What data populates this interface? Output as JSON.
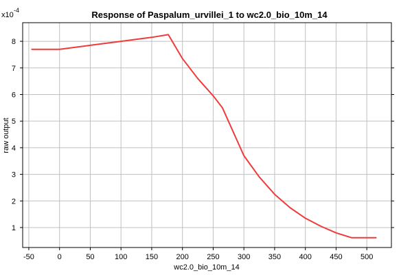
{
  "chart_data": {
    "type": "line",
    "title": "Response of Paspalum_urvillei_1 to wc2.0_bio_10m_14",
    "xlabel": "wc2.0_bio_10m_14",
    "ylabel": "raw output",
    "y_multiplier_label": "x10",
    "y_multiplier_exponent": "-4",
    "xlim": [
      -60,
      540
    ],
    "ylim": [
      0.25,
      8.7
    ],
    "x_ticks": [
      -50,
      0,
      50,
      100,
      150,
      200,
      250,
      300,
      350,
      400,
      450,
      500
    ],
    "y_ticks": [
      1,
      2,
      3,
      4,
      5,
      6,
      7,
      8
    ],
    "grid": true,
    "series": [
      {
        "color": "#f03a3a",
        "x": [
          -45,
          0,
          50,
          100,
          150,
          177,
          200,
          225,
          250,
          265,
          300,
          325,
          350,
          375,
          400,
          425,
          450,
          475,
          515
        ],
        "y": [
          7.7,
          7.7,
          7.85,
          8.0,
          8.15,
          8.25,
          7.35,
          6.6,
          5.95,
          5.5,
          3.7,
          2.9,
          2.25,
          1.75,
          1.35,
          1.05,
          0.8,
          0.62,
          0.62
        ]
      }
    ]
  }
}
